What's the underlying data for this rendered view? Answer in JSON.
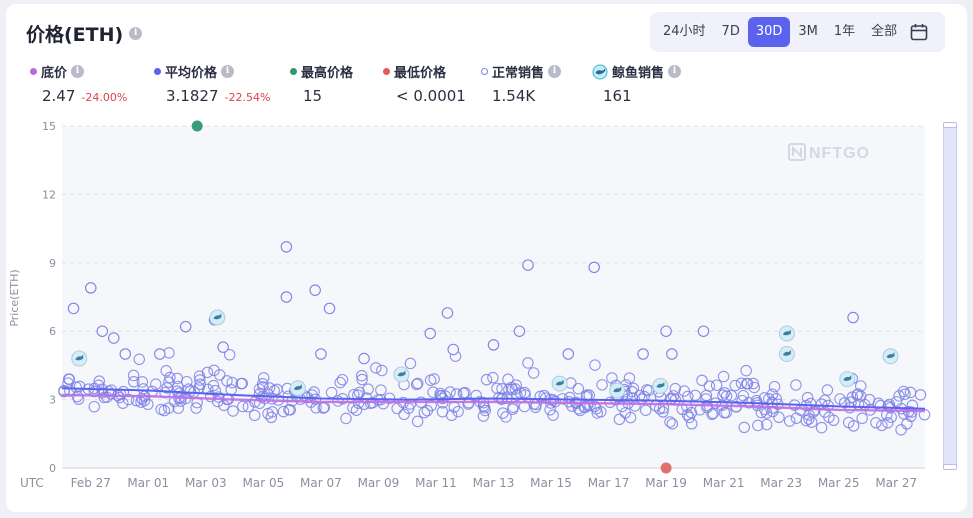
{
  "title": "价格(ETH)",
  "ranges": {
    "items": [
      "24小时",
      "7D",
      "30D",
      "3M",
      "1年",
      "全部"
    ],
    "active": "30D"
  },
  "legend": [
    {
      "key": "floor",
      "label": "底价",
      "value": "2.47",
      "change": "-24.00%",
      "color": "#b66ce0",
      "marker": "dot",
      "info": true
    },
    {
      "key": "avg",
      "label": "平均价格",
      "value": "3.1827",
      "change": "-22.54%",
      "color": "#5b63ee",
      "marker": "dot",
      "info": true
    },
    {
      "key": "max",
      "label": "最高价格",
      "value": "15",
      "color": "#2e9a6b",
      "marker": "dot",
      "info": false
    },
    {
      "key": "min",
      "label": "最低价格",
      "value": "< 0.0001",
      "color": "#e05a5a",
      "marker": "dot",
      "info": false
    },
    {
      "key": "normal",
      "label": "正常销售",
      "value": "1.54K",
      "color": "#7b81e6",
      "marker": "ring",
      "info": true
    },
    {
      "key": "whale",
      "label": "鲸鱼销售",
      "value": "161",
      "color": "#38b5d8",
      "marker": "whale",
      "info": true
    }
  ],
  "watermark": "NFTGO",
  "chart_data": {
    "type": "scatter",
    "ylabel": "Price(ETH)",
    "xlabel": "UTC",
    "ylim": [
      0,
      15
    ],
    "yticks": [
      0,
      3,
      6,
      9,
      12,
      15
    ],
    "xlim": [
      0,
      30
    ],
    "xticks": [
      {
        "x": 1,
        "label": "Feb 27"
      },
      {
        "x": 3,
        "label": "Mar 01"
      },
      {
        "x": 5,
        "label": "Mar 03"
      },
      {
        "x": 7,
        "label": "Mar 05"
      },
      {
        "x": 9,
        "label": "Mar 07"
      },
      {
        "x": 11,
        "label": "Mar 09"
      },
      {
        "x": 13,
        "label": "Mar 11"
      },
      {
        "x": 15,
        "label": "Mar 13"
      },
      {
        "x": 17,
        "label": "Mar 15"
      },
      {
        "x": 19,
        "label": "Mar 17"
      },
      {
        "x": 21,
        "label": "Mar 19"
      },
      {
        "x": 23,
        "label": "Mar 21"
      },
      {
        "x": 25,
        "label": "Mar 23"
      },
      {
        "x": 27,
        "label": "Mar 25"
      },
      {
        "x": 29,
        "label": "Mar 27"
      }
    ],
    "grid": true,
    "highest": {
      "x": 4.7,
      "y": 15
    },
    "lowest": {
      "x": 21.0,
      "y": 0
    },
    "floor_line": {
      "x": [
        0,
        3,
        6,
        9,
        12,
        15,
        18,
        21,
        24,
        27,
        30
      ],
      "y": [
        3.2,
        3.15,
        3.0,
        2.9,
        2.9,
        2.9,
        2.85,
        2.8,
        2.7,
        2.55,
        2.5
      ]
    },
    "avg_line": {
      "x": [
        0,
        3,
        6,
        9,
        12,
        15,
        18,
        21,
        24,
        27,
        30
      ],
      "y": [
        3.5,
        3.4,
        3.2,
        3.05,
        3.0,
        3.05,
        3.0,
        2.95,
        2.85,
        2.7,
        2.6
      ]
    },
    "outliers": [
      {
        "x": 0.4,
        "y": 7.0
      },
      {
        "x": 1.0,
        "y": 7.9
      },
      {
        "x": 1.4,
        "y": 6.0
      },
      {
        "x": 1.8,
        "y": 5.7
      },
      {
        "x": 2.2,
        "y": 5.0
      },
      {
        "x": 3.4,
        "y": 5.0
      },
      {
        "x": 4.3,
        "y": 6.2
      },
      {
        "x": 5.3,
        "y": 6.5
      },
      {
        "x": 5.6,
        "y": 5.3
      },
      {
        "x": 7.8,
        "y": 9.7
      },
      {
        "x": 7.8,
        "y": 7.5
      },
      {
        "x": 8.8,
        "y": 7.8
      },
      {
        "x": 9.3,
        "y": 7.0
      },
      {
        "x": 9.0,
        "y": 5.0
      },
      {
        "x": 10.5,
        "y": 4.8
      },
      {
        "x": 12.8,
        "y": 5.9
      },
      {
        "x": 13.4,
        "y": 6.8
      },
      {
        "x": 13.6,
        "y": 5.2
      },
      {
        "x": 15.0,
        "y": 5.4
      },
      {
        "x": 15.9,
        "y": 6.0
      },
      {
        "x": 16.2,
        "y": 8.9
      },
      {
        "x": 17.6,
        "y": 5.0
      },
      {
        "x": 18.5,
        "y": 8.8
      },
      {
        "x": 20.2,
        "y": 5.0
      },
      {
        "x": 21.0,
        "y": 6.0
      },
      {
        "x": 21.2,
        "y": 5.0
      },
      {
        "x": 22.3,
        "y": 6.0
      },
      {
        "x": 27.5,
        "y": 6.6
      }
    ],
    "whale_sales": [
      {
        "x": 0.6,
        "y": 4.8
      },
      {
        "x": 5.4,
        "y": 6.6
      },
      {
        "x": 8.2,
        "y": 3.5
      },
      {
        "x": 11.8,
        "y": 4.1
      },
      {
        "x": 17.3,
        "y": 3.7
      },
      {
        "x": 19.3,
        "y": 3.4
      },
      {
        "x": 20.8,
        "y": 3.6
      },
      {
        "x": 25.2,
        "y": 5.9
      },
      {
        "x": 25.2,
        "y": 5.0
      },
      {
        "x": 27.3,
        "y": 3.9
      },
      {
        "x": 28.8,
        "y": 4.9
      }
    ]
  }
}
